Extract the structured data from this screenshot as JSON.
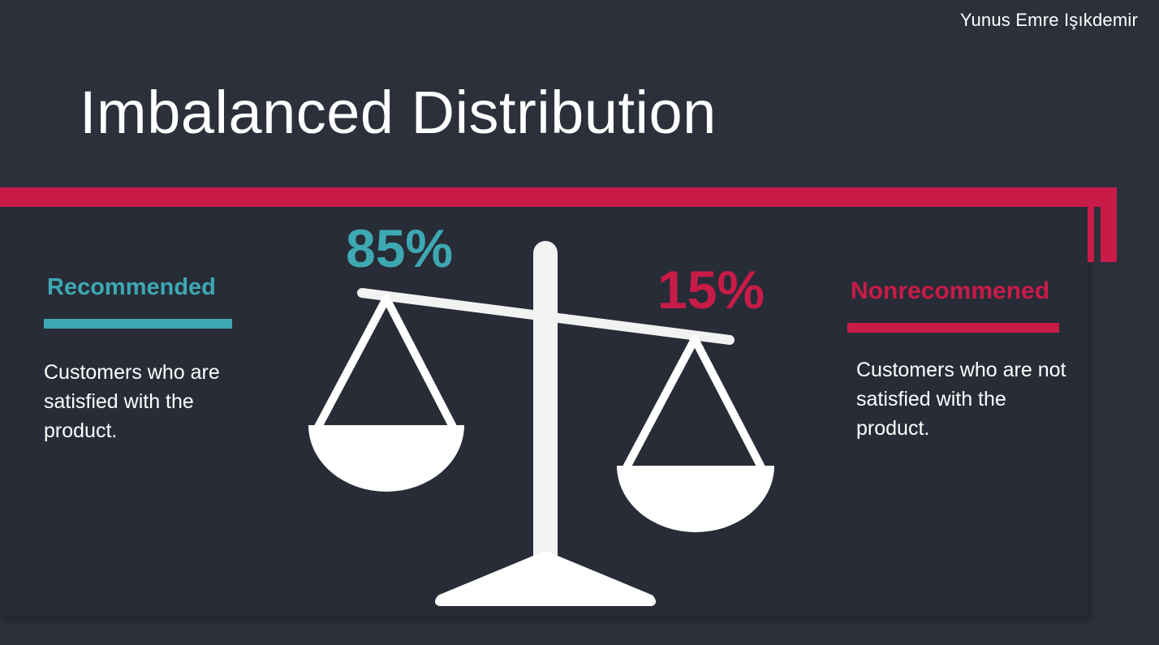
{
  "author": "Yunus Emre Işıkdemir",
  "title": "Imbalanced Distribution",
  "colors": {
    "background": "#2b303b",
    "panel": "#272c37",
    "accent": "#c81b48",
    "recommended": "#3ea8b2",
    "nonrecommended": "#c81b48",
    "scale": "#ffffff"
  },
  "recommended": {
    "label": "Recommended",
    "percent": "85%",
    "description": "Customers who are satisfied with the product."
  },
  "nonrecommended": {
    "label": "Nonrecommened",
    "percent": "15%",
    "description": "Customers who are not satisfied with the product."
  },
  "scale_icon": "balance-scale-icon"
}
